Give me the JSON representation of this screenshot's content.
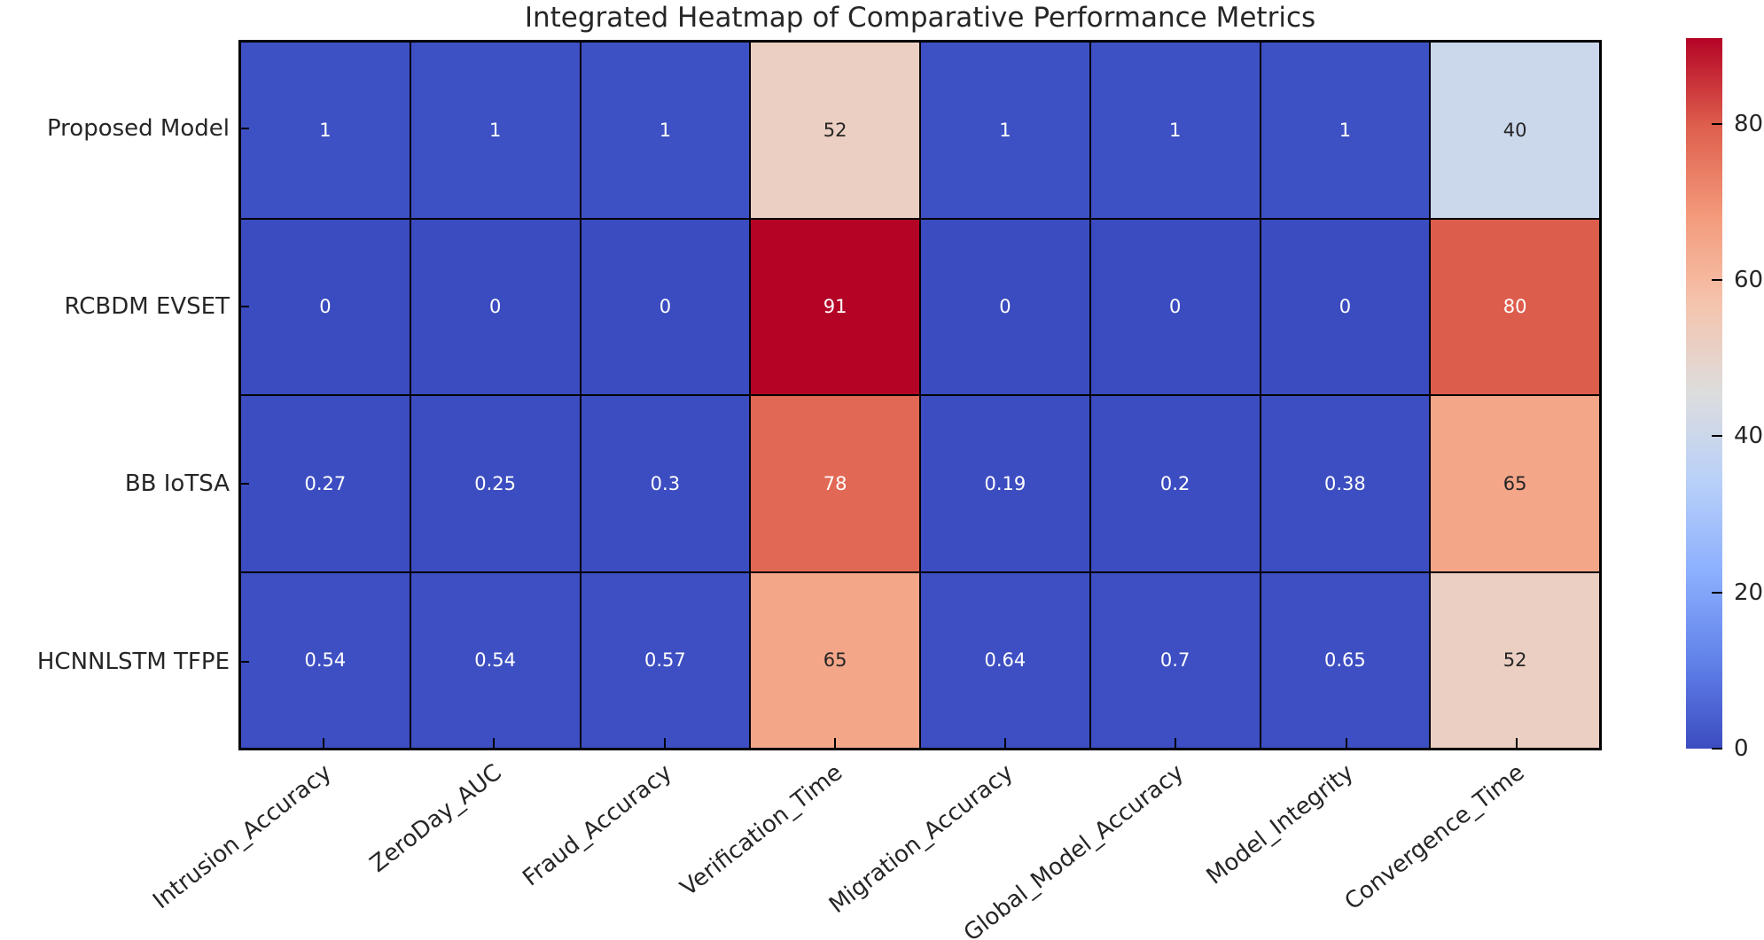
{
  "chart_data": {
    "type": "heatmap",
    "title": "Integrated Heatmap of Comparative Performance Metrics",
    "rows": [
      "Proposed Model",
      "RCBDM EVSET",
      "BB IoTSA",
      "HCNNLSTM TFPE"
    ],
    "columns": [
      "Intrusion_Accuracy",
      "ZeroDay_AUC",
      "Fraud_Accuracy",
      "Verification_Time",
      "Migration_Accuracy",
      "Global_Model_Accuracy",
      "Model_Integrity",
      "Convergence_Time"
    ],
    "values": [
      [
        1,
        1,
        1,
        52,
        1,
        1,
        1,
        40
      ],
      [
        0,
        0,
        0,
        91,
        0,
        0,
        0,
        80
      ],
      [
        0.27,
        0.25,
        0.3,
        78,
        0.19,
        0.2,
        0.38,
        65
      ],
      [
        0.54,
        0.54,
        0.57,
        65,
        0.64,
        0.7,
        0.65,
        52
      ]
    ],
    "cell_labels": [
      [
        "1",
        "1",
        "1",
        "52",
        "1",
        "1",
        "1",
        "40"
      ],
      [
        "0",
        "0",
        "0",
        "91",
        "0",
        "0",
        "0",
        "80"
      ],
      [
        "0.27",
        "0.25",
        "0.3",
        "78",
        "0.19",
        "0.2",
        "0.38",
        "65"
      ],
      [
        "0.54",
        "0.54",
        "0.57",
        "65",
        "0.64",
        "0.7",
        "0.65",
        "52"
      ]
    ],
    "colormap": "coolwarm",
    "vmin": 0,
    "vmax": 91,
    "colorbar_ticks": [
      "0",
      "20",
      "40",
      "60",
      "80"
    ],
    "colorbar_tick_values": [
      0,
      20,
      40,
      60,
      80
    ],
    "colorbar_position": "right",
    "grid": true,
    "xlabel": "",
    "ylabel": "",
    "x_tick_rotation_deg": 38,
    "colors": {
      "low": "#3b4cc0",
      "mid": "#dddddd",
      "high": "#b40426",
      "cell_border": "#000000",
      "text_dark": "#262626",
      "text_light": "#ffffff",
      "background": "#ffffff"
    }
  }
}
